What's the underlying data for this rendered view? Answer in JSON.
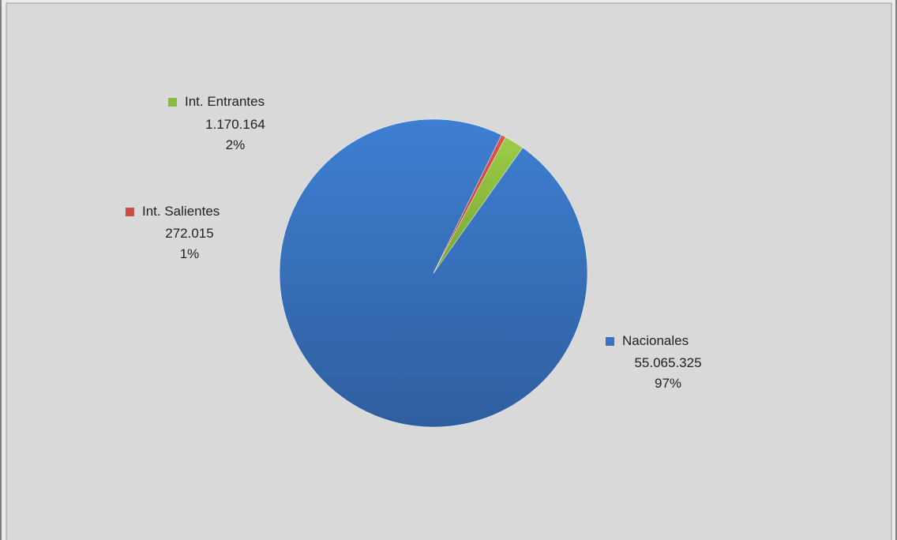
{
  "chart_data": {
    "type": "pie",
    "title": "",
    "slices": [
      {
        "name": "Nacionales",
        "value": 55065325,
        "value_label": "55.065.325",
        "percent_label": "97%",
        "color": "#3b74c3"
      },
      {
        "name": "Int. Salientes",
        "value": 272015,
        "value_label": "272.015",
        "percent_label": "1%",
        "color": "#d04a45"
      },
      {
        "name": "Int. Entrantes",
        "value": 1170164,
        "value_label": "1.170.164",
        "percent_label": "2%",
        "color": "#8bbb3c"
      }
    ],
    "legend": "labels next to slices"
  },
  "colors": {
    "plot_background": "#d9d9d9",
    "frame_border": "#7f7f7f"
  }
}
